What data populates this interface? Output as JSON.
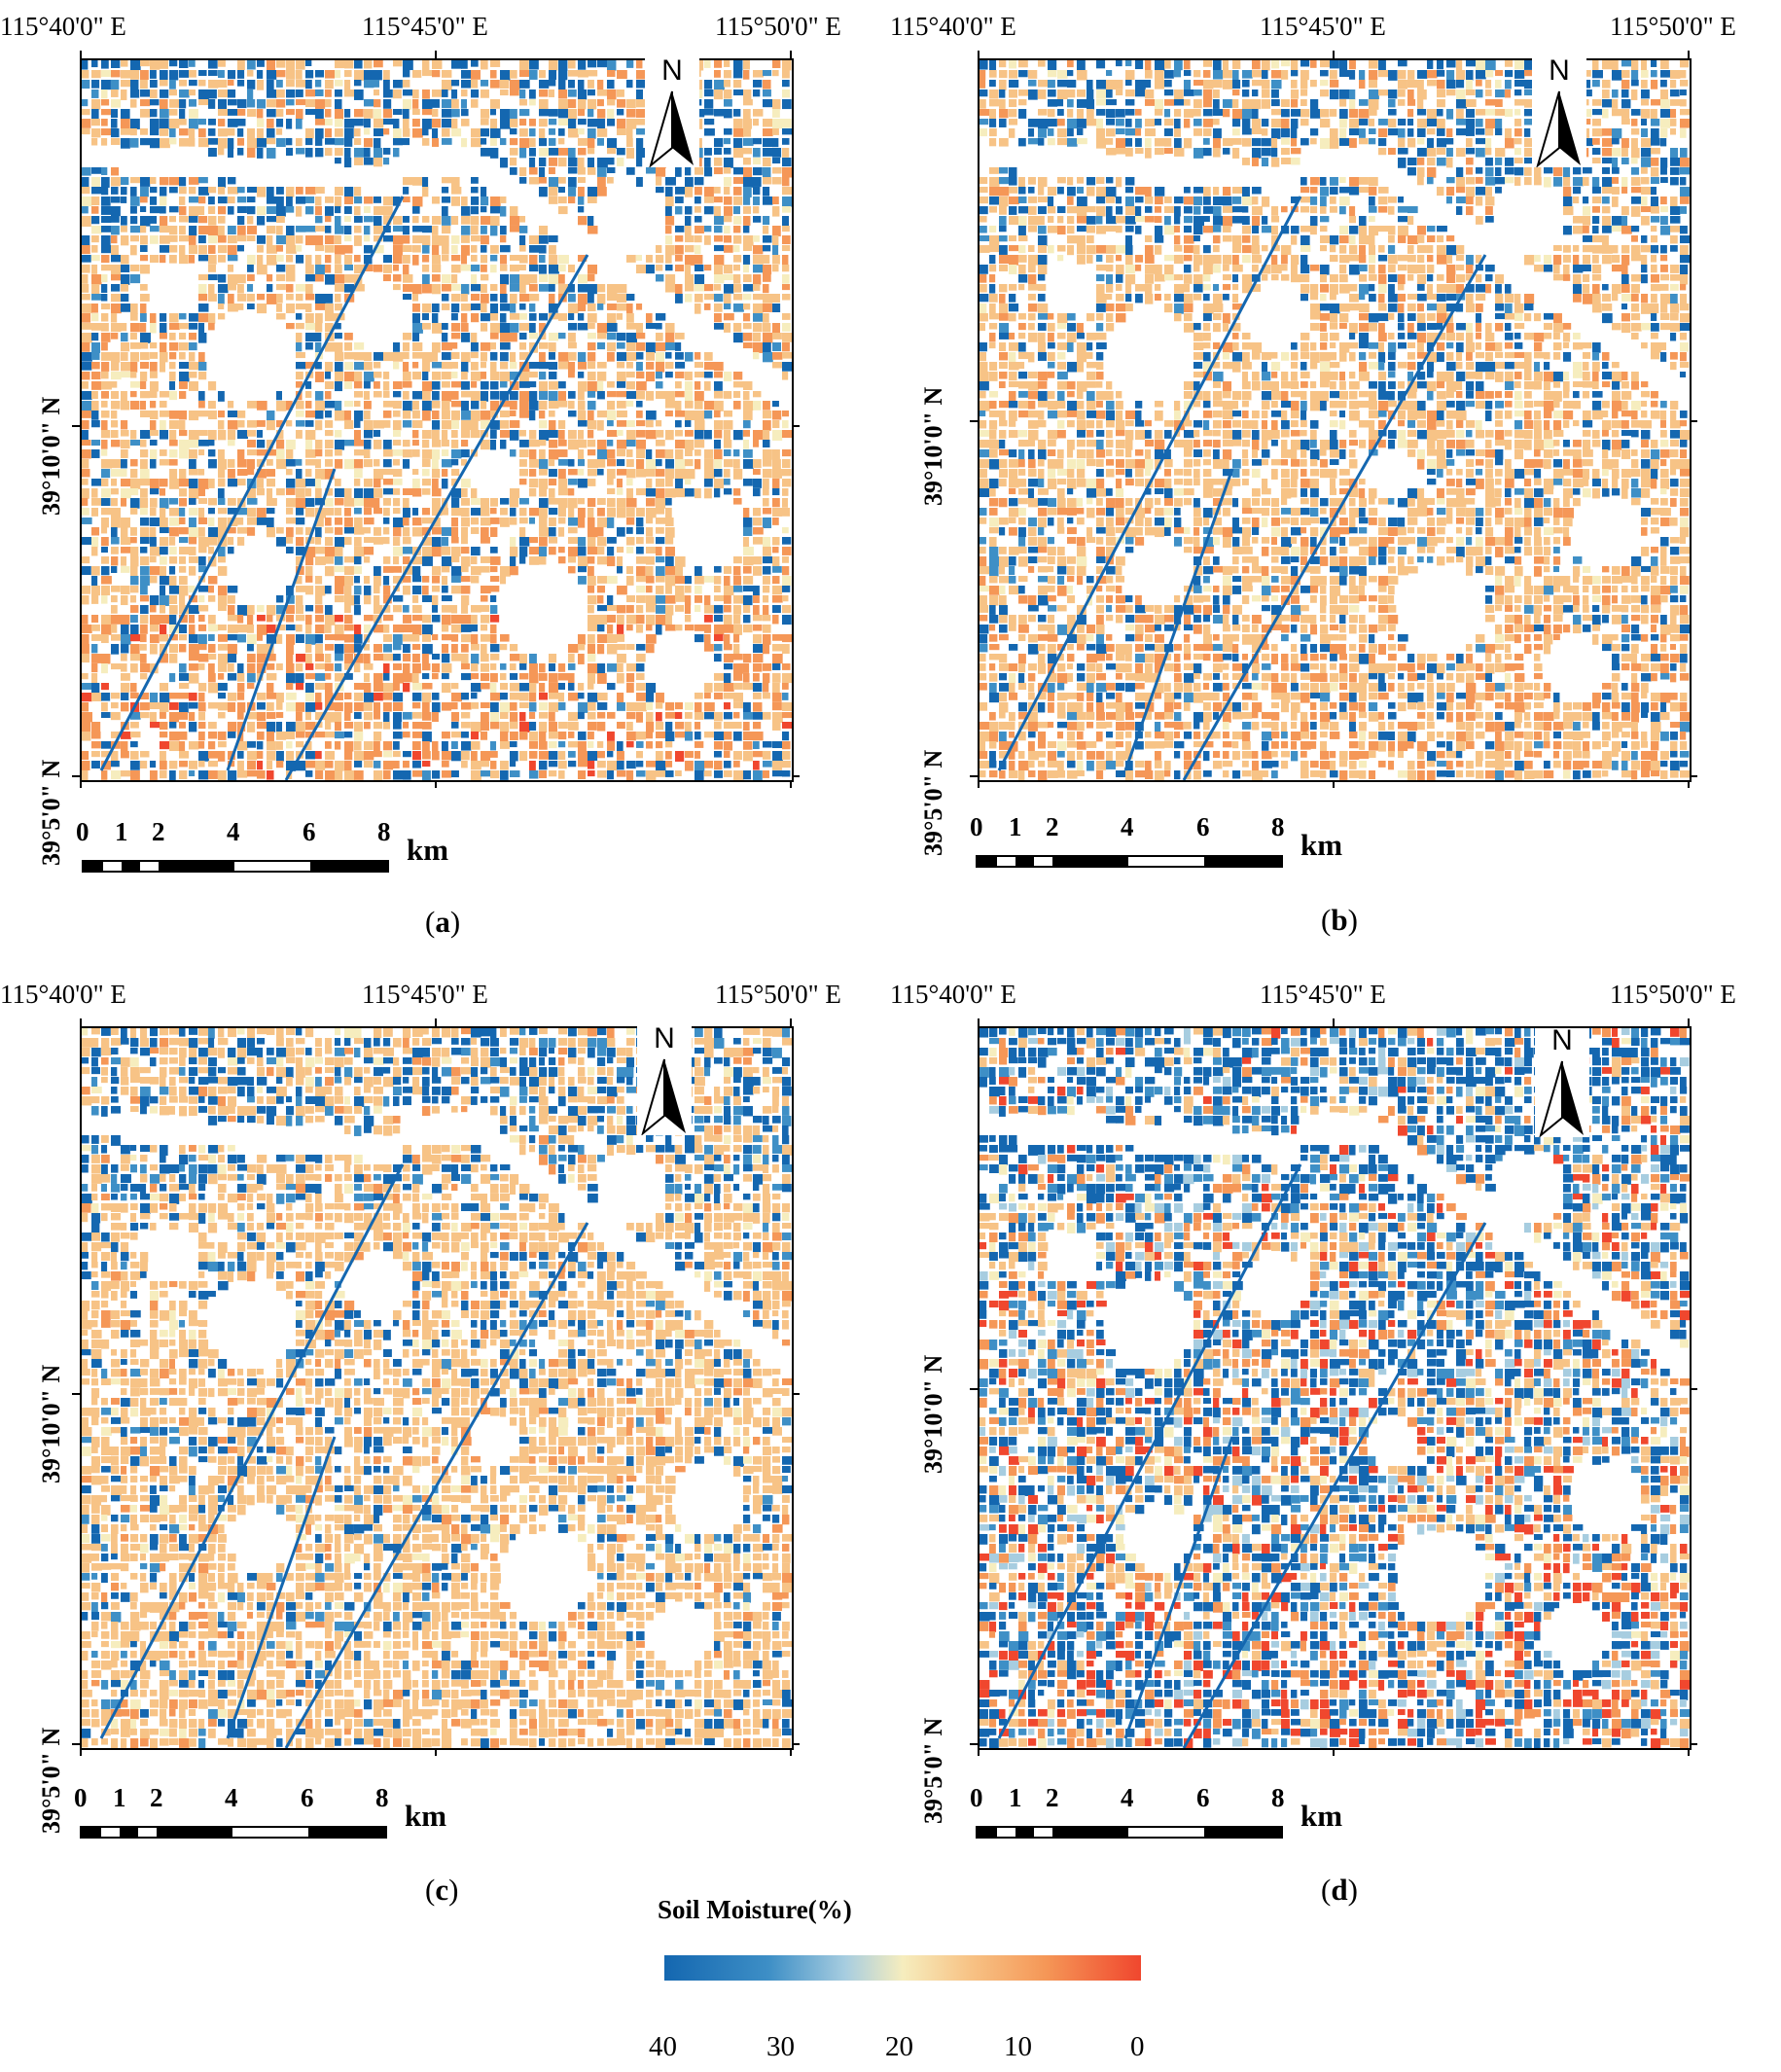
{
  "panels": [
    {
      "id": "a",
      "caption": "a",
      "seed": 11,
      "wet_rate": 0.22,
      "dry_boost": 0.6,
      "noise": 0.15,
      "mixed": false
    },
    {
      "id": "b",
      "caption": "b",
      "seed": 23,
      "wet_rate": 0.2,
      "dry_boost": 0.35,
      "noise": 0.1,
      "mixed": false
    },
    {
      "id": "c",
      "caption": "c",
      "seed": 37,
      "wet_rate": 0.18,
      "dry_boost": 0.05,
      "noise": 0.05,
      "mixed": false
    },
    {
      "id": "d",
      "caption": "d",
      "seed": 53,
      "wet_rate": 0.4,
      "dry_boost": 0.75,
      "noise": 0.35,
      "mixed": true
    }
  ],
  "axes": {
    "lon_labels": [
      "115°40'0\" E",
      "115°45'0\" E",
      "115°50'0\" E"
    ],
    "lat_labels": [
      "39°10'0\" N",
      "39°5'0\" N"
    ]
  },
  "north_arrow": {
    "letter": "N"
  },
  "scale_bar": {
    "labels": [
      "0",
      "1",
      "2",
      "4",
      "6",
      "8"
    ],
    "unit": "km"
  },
  "legend": {
    "title": "Soil Moisture(%)",
    "ticks": [
      "40",
      "30",
      "20",
      "10",
      "0"
    ],
    "colors": {
      "wet": "#1467b0",
      "mid": "#f6edbe",
      "dry": "#f0472e"
    }
  }
}
